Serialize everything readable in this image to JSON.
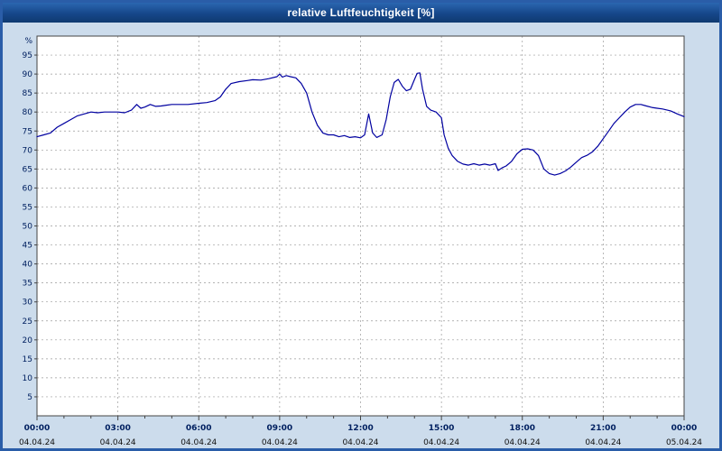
{
  "window": {
    "title": "relative Luftfeuchtigkeit [%]"
  },
  "colors": {
    "line": "#0000a0",
    "grid": "#9a9a9a",
    "frame": "#444444",
    "plot_bg": "#ffffff",
    "outer_bg": "#ccdcec",
    "time_label": "#002060",
    "date_label": "#111111",
    "titlebar": "#16478a",
    "border": "#2a5da8"
  },
  "chart_data": {
    "type": "line",
    "title": "relative Luftfeuchtigkeit [%]",
    "unit_label": "%",
    "ylim": [
      0,
      100
    ],
    "ytick_step": 5,
    "ytick_min": 5,
    "ytick_max": 95,
    "x_hours_range": [
      0,
      24
    ],
    "xtick_step_hours": 3,
    "grid": true,
    "legend": "none",
    "xticks": [
      {
        "time": "00:00",
        "date": "04.04.24"
      },
      {
        "time": "03:00",
        "date": "04.04.24"
      },
      {
        "time": "06:00",
        "date": "04.04.24"
      },
      {
        "time": "09:00",
        "date": "04.04.24"
      },
      {
        "time": "12:00",
        "date": "04.04.24"
      },
      {
        "time": "15:00",
        "date": "04.04.24"
      },
      {
        "time": "18:00",
        "date": "04.04.24"
      },
      {
        "time": "21:00",
        "date": "04.04.24"
      },
      {
        "time": "00:00",
        "date": "05.04.24"
      }
    ],
    "series": [
      {
        "name": "relative Luftfeuchtigkeit",
        "points": [
          [
            0,
            73.5
          ],
          [
            0.25,
            74
          ],
          [
            0.5,
            74.5
          ],
          [
            0.75,
            76
          ],
          [
            1,
            77
          ],
          [
            1.25,
            78
          ],
          [
            1.5,
            79
          ],
          [
            1.75,
            79.5
          ],
          [
            2,
            80
          ],
          [
            2.25,
            79.8
          ],
          [
            2.5,
            80
          ],
          [
            2.75,
            80
          ],
          [
            3,
            80
          ],
          [
            3.25,
            79.8
          ],
          [
            3.5,
            80.5
          ],
          [
            3.7,
            82
          ],
          [
            3.85,
            81
          ],
          [
            4,
            81.3
          ],
          [
            4.2,
            82
          ],
          [
            4.4,
            81.5
          ],
          [
            4.6,
            81.6
          ],
          [
            4.8,
            81.8
          ],
          [
            5,
            82
          ],
          [
            5.3,
            82
          ],
          [
            5.6,
            82
          ],
          [
            6,
            82.3
          ],
          [
            6.3,
            82.5
          ],
          [
            6.6,
            83
          ],
          [
            6.8,
            84
          ],
          [
            7,
            86
          ],
          [
            7.2,
            87.5
          ],
          [
            7.5,
            88
          ],
          [
            7.8,
            88.3
          ],
          [
            8,
            88.5
          ],
          [
            8.3,
            88.4
          ],
          [
            8.6,
            88.8
          ],
          [
            8.9,
            89.3
          ],
          [
            9,
            90
          ],
          [
            9.1,
            89.2
          ],
          [
            9.25,
            89.6
          ],
          [
            9.4,
            89.3
          ],
          [
            9.6,
            89
          ],
          [
            9.8,
            87.5
          ],
          [
            10,
            85
          ],
          [
            10.2,
            80
          ],
          [
            10.4,
            76.5
          ],
          [
            10.6,
            74.5
          ],
          [
            10.8,
            74
          ],
          [
            11,
            74
          ],
          [
            11.2,
            73.5
          ],
          [
            11.4,
            73.8
          ],
          [
            11.6,
            73.3
          ],
          [
            11.8,
            73.5
          ],
          [
            12,
            73.2
          ],
          [
            12.15,
            74
          ],
          [
            12.3,
            79.5
          ],
          [
            12.45,
            74.5
          ],
          [
            12.6,
            73.3
          ],
          [
            12.8,
            74
          ],
          [
            12.95,
            78
          ],
          [
            13.1,
            84
          ],
          [
            13.25,
            87.8
          ],
          [
            13.4,
            88.6
          ],
          [
            13.55,
            86.8
          ],
          [
            13.7,
            85.6
          ],
          [
            13.85,
            86
          ],
          [
            14,
            88.6
          ],
          [
            14.1,
            90.2
          ],
          [
            14.2,
            90.3
          ],
          [
            14.3,
            86
          ],
          [
            14.45,
            81.5
          ],
          [
            14.6,
            80.5
          ],
          [
            14.8,
            80
          ],
          [
            15,
            78.5
          ],
          [
            15.1,
            74
          ],
          [
            15.25,
            70.5
          ],
          [
            15.4,
            68.5
          ],
          [
            15.6,
            67
          ],
          [
            15.8,
            66.3
          ],
          [
            16,
            66
          ],
          [
            16.2,
            66.4
          ],
          [
            16.4,
            66
          ],
          [
            16.6,
            66.3
          ],
          [
            16.8,
            66
          ],
          [
            17,
            66.4
          ],
          [
            17.1,
            64.6
          ],
          [
            17.25,
            65.3
          ],
          [
            17.4,
            65.8
          ],
          [
            17.6,
            67
          ],
          [
            17.8,
            69
          ],
          [
            18,
            70.2
          ],
          [
            18.2,
            70.3
          ],
          [
            18.4,
            70
          ],
          [
            18.6,
            68.5
          ],
          [
            18.8,
            65
          ],
          [
            19,
            63.8
          ],
          [
            19.2,
            63.4
          ],
          [
            19.4,
            63.8
          ],
          [
            19.6,
            64.5
          ],
          [
            19.8,
            65.5
          ],
          [
            20,
            66.8
          ],
          [
            20.2,
            68
          ],
          [
            20.4,
            68.6
          ],
          [
            20.6,
            69.5
          ],
          [
            20.8,
            71
          ],
          [
            21,
            73
          ],
          [
            21.2,
            75
          ],
          [
            21.4,
            77
          ],
          [
            21.6,
            78.5
          ],
          [
            21.8,
            80
          ],
          [
            22,
            81.3
          ],
          [
            22.2,
            82
          ],
          [
            22.4,
            82
          ],
          [
            22.6,
            81.6
          ],
          [
            22.8,
            81.2
          ],
          [
            23,
            81
          ],
          [
            23.2,
            80.8
          ],
          [
            23.5,
            80.3
          ],
          [
            23.75,
            79.5
          ],
          [
            24,
            78.8
          ]
        ]
      }
    ]
  }
}
